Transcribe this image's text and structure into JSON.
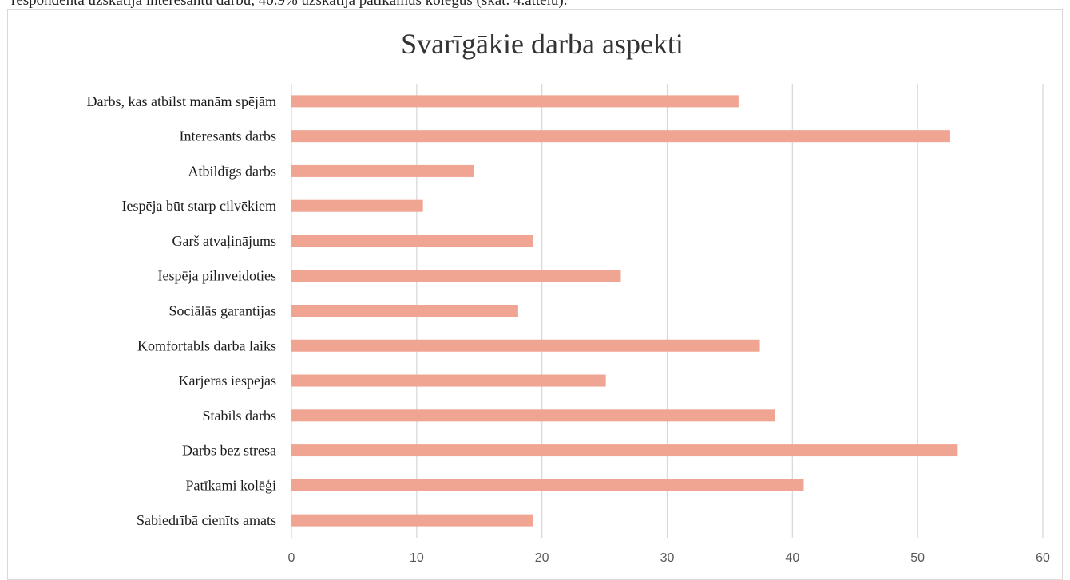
{
  "page": {
    "top_text": "respondenta uzskatīja interesantu darbu, 40.9% uzskatīja patīkamus kolēģus (skat. 4.attēlu)."
  },
  "chart_data": {
    "type": "bar",
    "orientation": "horizontal",
    "title": "Svarīgākie darba aspekti",
    "xlabel": "",
    "ylabel": "",
    "xlim": [
      0,
      60
    ],
    "x_ticks": [
      0,
      10,
      20,
      30,
      40,
      50,
      60
    ],
    "grid": true,
    "bar_color": "#f0a592",
    "categories": [
      "Darbs, kas atbilst manām spējām",
      "Interesants darbs",
      "Atbildīgs darbs",
      "Iespēja būt starp cilvēkiem",
      "Garš atvaļinājums",
      "Iespēja pilnveidoties",
      "Sociālās garantijas",
      "Komfortabls darba laiks",
      "Karjeras iespējas",
      "Stabils darbs",
      "Darbs bez stresa",
      "Patīkami kolēģi",
      "Sabiedrībā cienīts amats"
    ],
    "values": [
      35.7,
      52.6,
      14.6,
      10.5,
      19.3,
      26.3,
      18.1,
      37.4,
      25.1,
      38.6,
      53.2,
      40.9,
      19.3
    ]
  }
}
